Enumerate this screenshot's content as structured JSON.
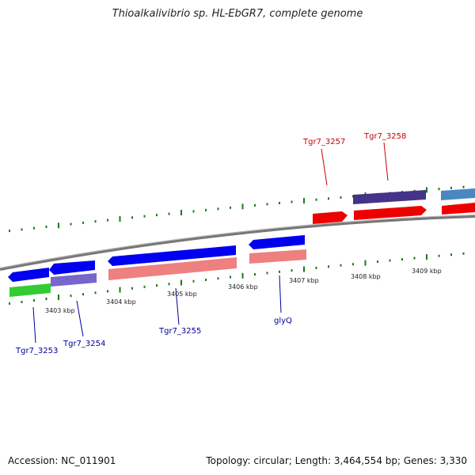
{
  "title": "Thioalkalivibrio sp. HL-EbGR7, complete genome",
  "footer": {
    "accession": "Accession: NC_011901",
    "stats": "Topology: circular; Length: 3,464,554 bp; Genes: 3,330"
  },
  "colors": {
    "backbone": "#808080",
    "tick": "#1a7a1a",
    "label_forward": "#cc0000",
    "label_reverse": "#000099",
    "blue": "#0000ee",
    "red": "#ee0000",
    "pink": "#ee8080",
    "green": "#33cc33",
    "purple": "#7766cc",
    "darkpurple": "#443388",
    "steel": "#4a86c0"
  },
  "kbp_labels": [
    {
      "text": "3403 kbp"
    },
    {
      "text": "3404 kbp"
    },
    {
      "text": "3405 kbp"
    },
    {
      "text": "3406 kbp"
    },
    {
      "text": "3407 kbp"
    },
    {
      "text": "3408 kbp"
    },
    {
      "text": "3409 kbp"
    }
  ],
  "gene_labels": [
    {
      "text": "Tgr7_3257",
      "strand": "forward"
    },
    {
      "text": "Tgr7_3258",
      "strand": "forward"
    },
    {
      "text": "Tgr7_3253",
      "strand": "reverse"
    },
    {
      "text": "Tgr7_3254",
      "strand": "reverse"
    },
    {
      "text": "Tgr7_3255",
      "strand": "reverse"
    },
    {
      "text": "glyQ",
      "strand": "reverse"
    }
  ]
}
